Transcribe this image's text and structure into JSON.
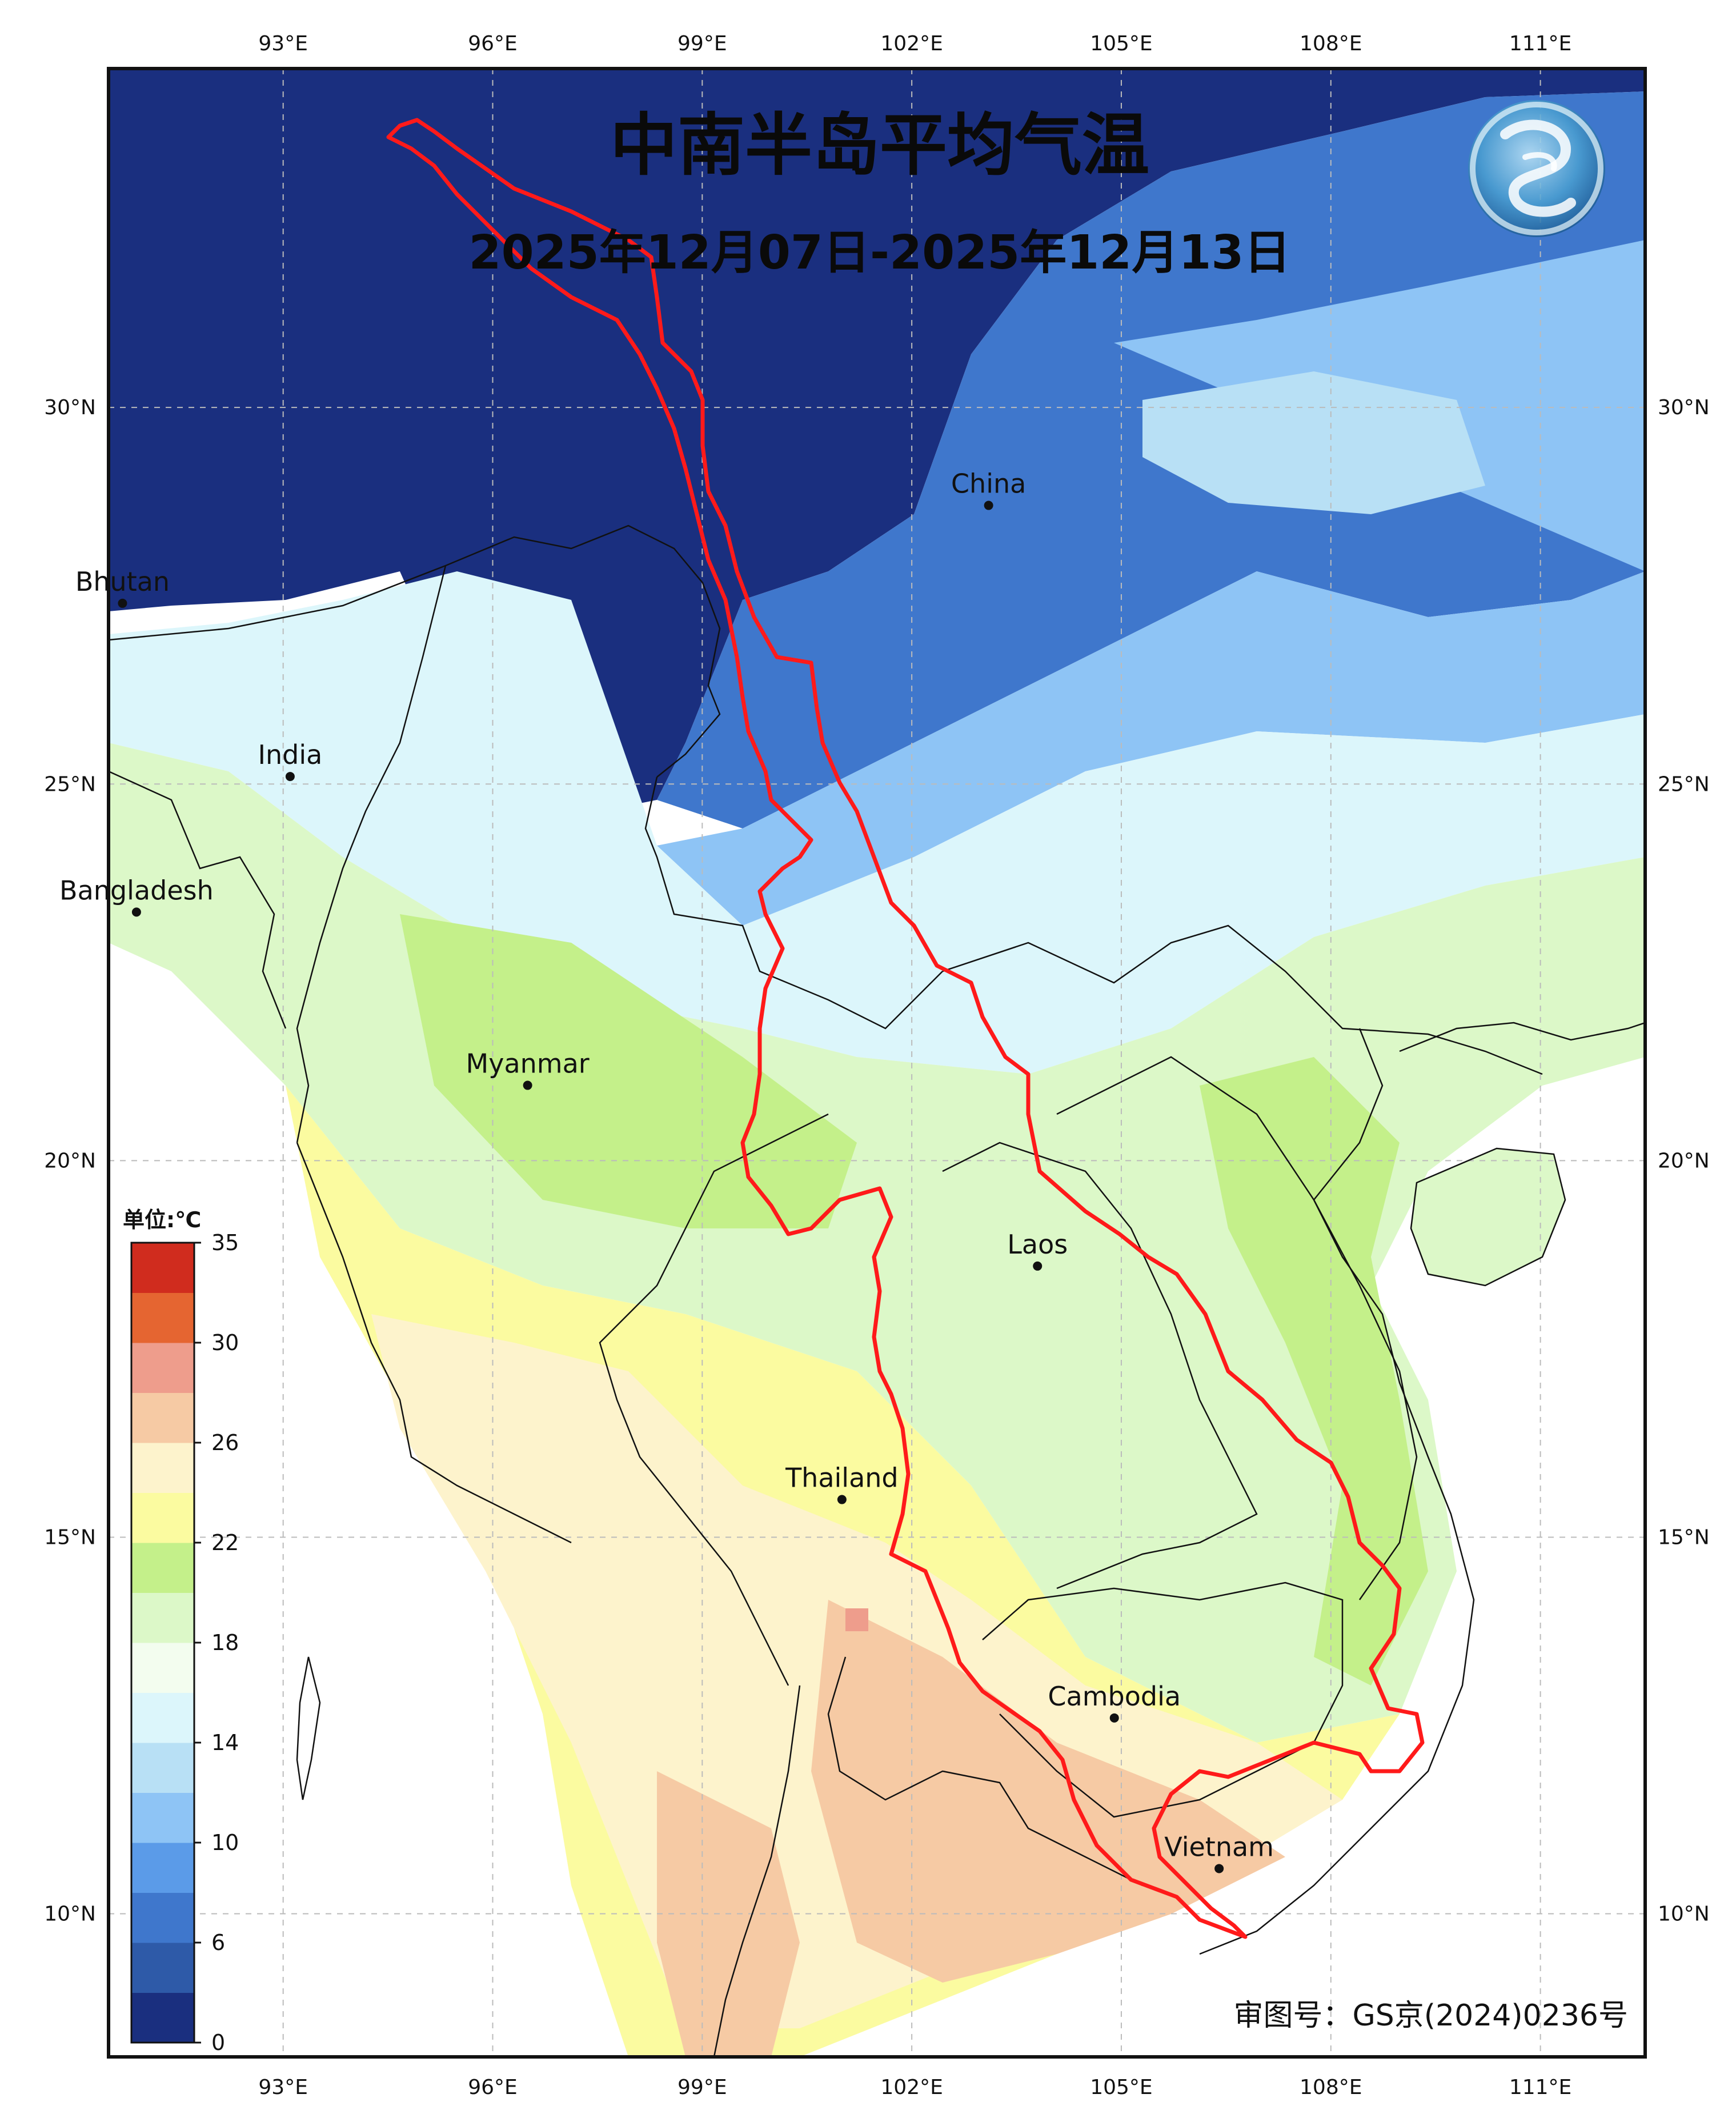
{
  "map": {
    "title": "中南半岛平均气温",
    "date_range": "2025年12月07日-2025年12月13日",
    "approval_number": "审图号：GS京(2024)0236号",
    "extent": {
      "lon": [
        90.5,
        112.5
      ],
      "lat": [
        8.1,
        34.5
      ]
    },
    "lon_ticks": [
      {
        "value": 93,
        "label": "93°E"
      },
      {
        "value": 96,
        "label": "96°E"
      },
      {
        "value": 99,
        "label": "99°E"
      },
      {
        "value": 102,
        "label": "102°E"
      },
      {
        "value": 105,
        "label": "105°E"
      },
      {
        "value": 108,
        "label": "108°E"
      },
      {
        "value": 111,
        "label": "111°E"
      }
    ],
    "lat_ticks": [
      {
        "value": 30,
        "label": "30°N"
      },
      {
        "value": 25,
        "label": "25°N"
      },
      {
        "value": 20,
        "label": "20°N"
      },
      {
        "value": 15,
        "label": "15°N"
      },
      {
        "value": 10,
        "label": "10°N"
      }
    ],
    "countries": [
      {
        "name": "China",
        "lon": 103.1,
        "lat": 28.7
      },
      {
        "name": "Bhutan",
        "lon": 90.7,
        "lat": 27.4
      },
      {
        "name": "India",
        "lon": 93.1,
        "lat": 25.1
      },
      {
        "name": "Bangladesh",
        "lon": 90.9,
        "lat": 23.3
      },
      {
        "name": "Myanmar",
        "lon": 96.5,
        "lat": 21.0
      },
      {
        "name": "Laos",
        "lon": 103.8,
        "lat": 18.6
      },
      {
        "name": "Thailand",
        "lon": 101.0,
        "lat": 15.5
      },
      {
        "name": "Cambodia",
        "lon": 104.9,
        "lat": 12.6
      },
      {
        "name": "Vietnam",
        "lon": 106.4,
        "lat": 10.6
      }
    ],
    "colorbar": {
      "unit": "单位:℃",
      "ticks": [
        "0",
        "6",
        "10",
        "14",
        "18",
        "22",
        "26",
        "30",
        "35"
      ],
      "colors": [
        "#1a2f7f",
        "#2e5aa8",
        "#3f77cc",
        "#5b9be8",
        "#8ec4f5",
        "#b8e0f5",
        "#dcf6fb",
        "#f3fdef",
        "#dcf8c8",
        "#c4f08a",
        "#fbfba0",
        "#fdf3cc",
        "#f6caa4",
        "#ee9d8c",
        "#e56531",
        "#d02c1e"
      ]
    },
    "basin_outline_color": "#ff1a1a",
    "logo": "dragon-logo-icon"
  }
}
